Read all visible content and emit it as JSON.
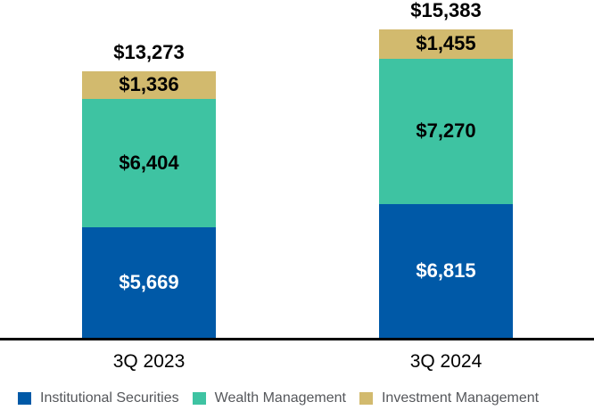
{
  "chart_data": {
    "type": "bar",
    "stacked": true,
    "categories": [
      "3Q 2023",
      "3Q 2024"
    ],
    "series": [
      {
        "name": "Institutional Securities",
        "color": "#0059A7",
        "values": [
          5669,
          6815
        ],
        "value_labels": [
          "$5,669",
          "$6,815"
        ],
        "value_label_color": "#FFFFFF"
      },
      {
        "name": "Wealth Management",
        "color": "#3EC3A2",
        "values": [
          6404,
          7270
        ],
        "value_labels": [
          "$6,404",
          "$7,270"
        ],
        "value_label_color": "#000000"
      },
      {
        "name": "Investment Management",
        "color": "#D2BA6E",
        "values": [
          1336,
          1455
        ],
        "value_labels": [
          "$1,336",
          "$1,455"
        ],
        "value_label_color": "#000000"
      }
    ],
    "totals": [
      13273,
      15383
    ],
    "total_labels": [
      "$13,273",
      "$15,383"
    ],
    "ylim": [
      0,
      15383
    ],
    "grid": false,
    "legend_position": "bottom",
    "background": "#FFFFFF",
    "axis_line_color": "#000000",
    "legend_text_color": "#55575B"
  }
}
